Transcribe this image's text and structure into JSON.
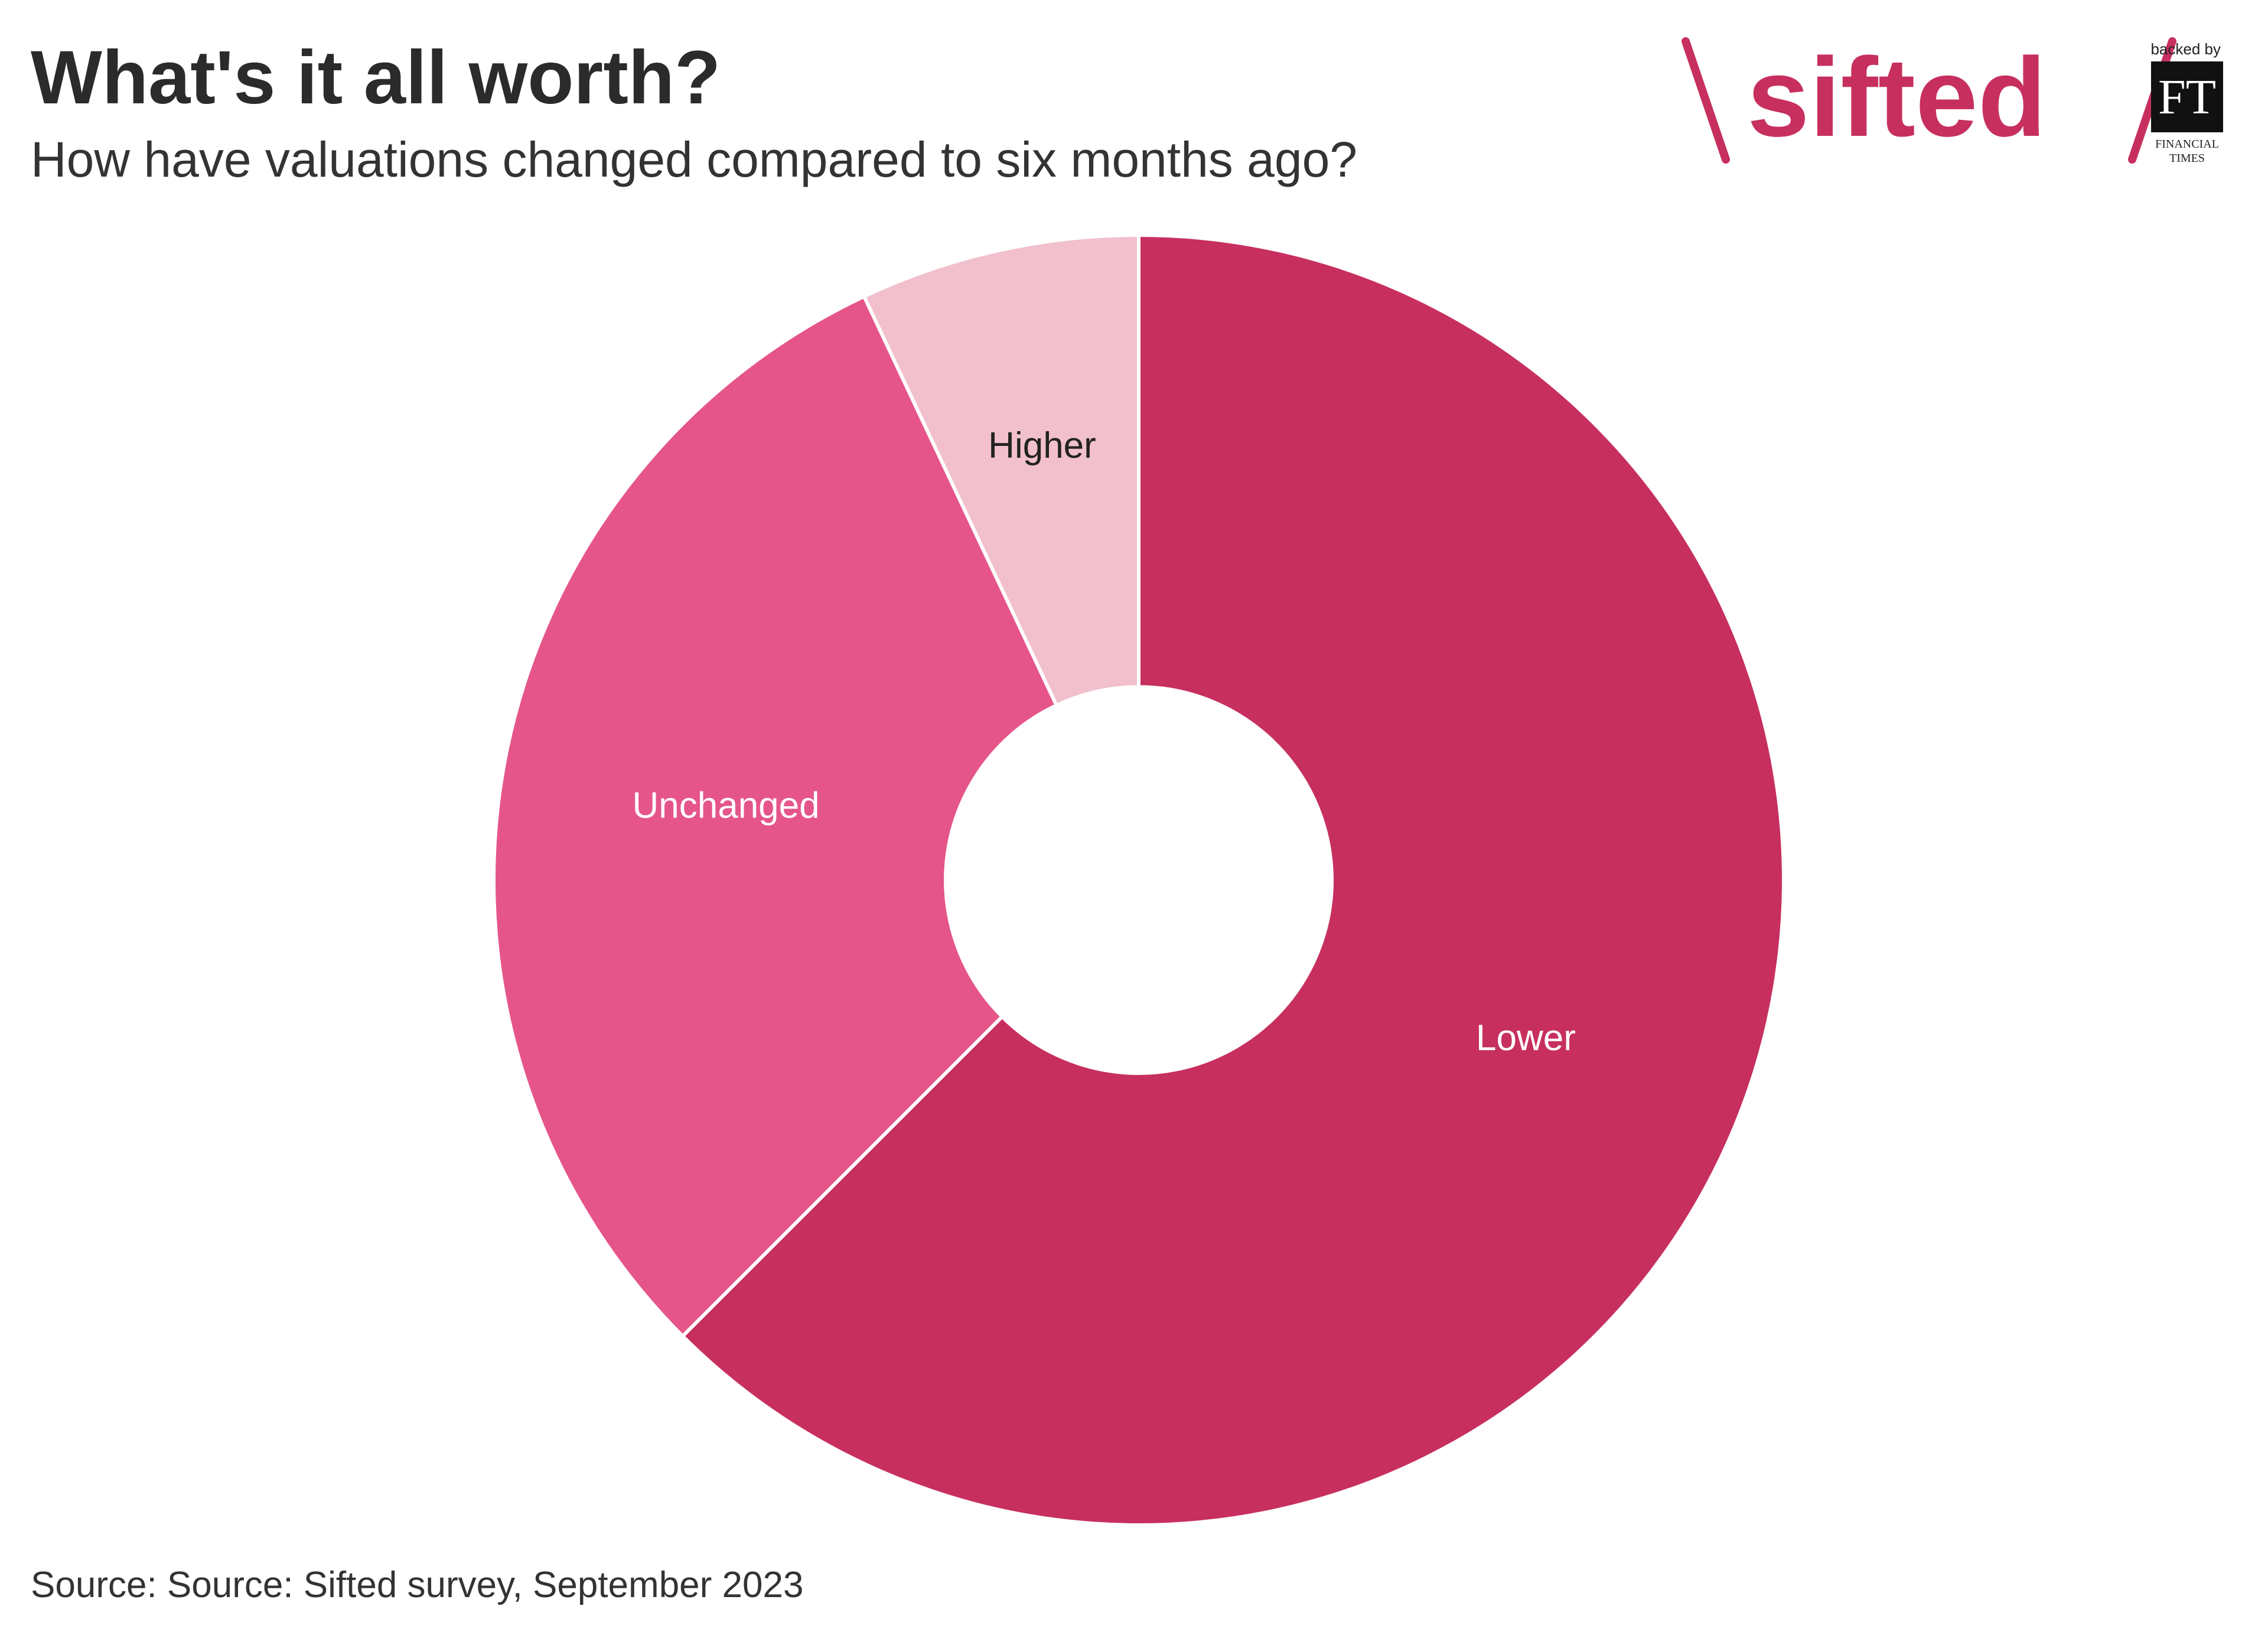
{
  "header": {
    "title": "What's it all worth?",
    "subtitle": "How have valuations changed compared to six months ago?"
  },
  "footer": {
    "source": "Source: Source: Sifted survey, September 2023"
  },
  "logo": {
    "brand": "sifted",
    "backed_by": "backed by",
    "ft_mark": "FT",
    "ft_line1": "FINANCIAL",
    "ft_line2": "TIMES",
    "brand_color": "#c72f5f"
  },
  "chart_data": {
    "type": "pie",
    "donut": true,
    "categories": [
      "Lower",
      "Unchanged",
      "Higher"
    ],
    "values": [
      62.5,
      30.5,
      7.0
    ],
    "colors": [
      "#c72f5f",
      "#e5558a",
      "#f1c0cc"
    ],
    "label_colors": [
      "#ffffff",
      "#ffffff",
      "#222222"
    ],
    "legend": "none"
  }
}
